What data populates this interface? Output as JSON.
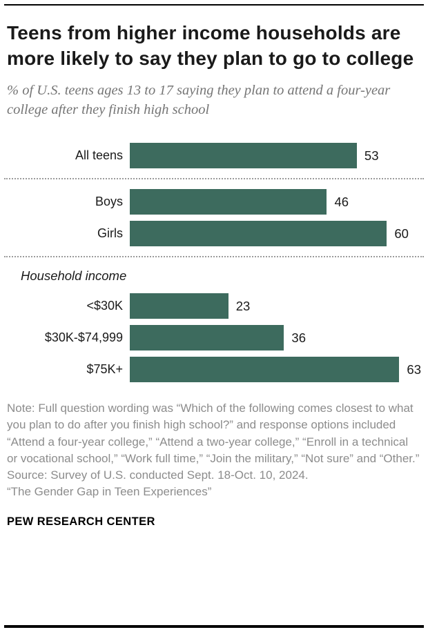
{
  "page": {
    "title": "Teens from higher income households are more likely to say they plan to go to college",
    "subtitle": "% of U.S. teens ages 13 to 17 saying they plan to attend a four-year college after they finish high school",
    "note": "Note: Full question wording was “Which of the following comes closest to what you plan to do after you finish high school?” and response options included “Attend a four-year college,” “Attend a two-year college,” “Enroll in a technical or vocational school,” “Work full time,” “Join the military,” “Not sure” and “Other.”",
    "source": "Source: Survey of U.S. conducted Sept. 18-Oct. 10, 2024.",
    "report": "“The Gender Gap in Teen Experiences”",
    "footer": "PEW RESEARCH CENTER"
  },
  "chart_data": {
    "type": "bar",
    "orientation": "horizontal",
    "title": "Teens from higher income households are more likely to say they plan to go to college",
    "subtitle": "% of U.S. teens ages 13 to 17 saying they plan to attend a four-year college after they finish high school",
    "bar_color": "#3d6b5e",
    "value_range": [
      0,
      68
    ],
    "max_scale": 68,
    "groups": [
      {
        "header": null,
        "rows": [
          {
            "label": "All teens",
            "value": 53
          }
        ]
      },
      {
        "header": null,
        "rows": [
          {
            "label": "Boys",
            "value": 46
          },
          {
            "label": "Girls",
            "value": 60
          }
        ]
      },
      {
        "header": "Household income",
        "rows": [
          {
            "label": "<$30K",
            "value": 23
          },
          {
            "label": "$30K-$74,999",
            "value": 36
          },
          {
            "label": "$75K+",
            "value": 63
          }
        ]
      }
    ]
  }
}
